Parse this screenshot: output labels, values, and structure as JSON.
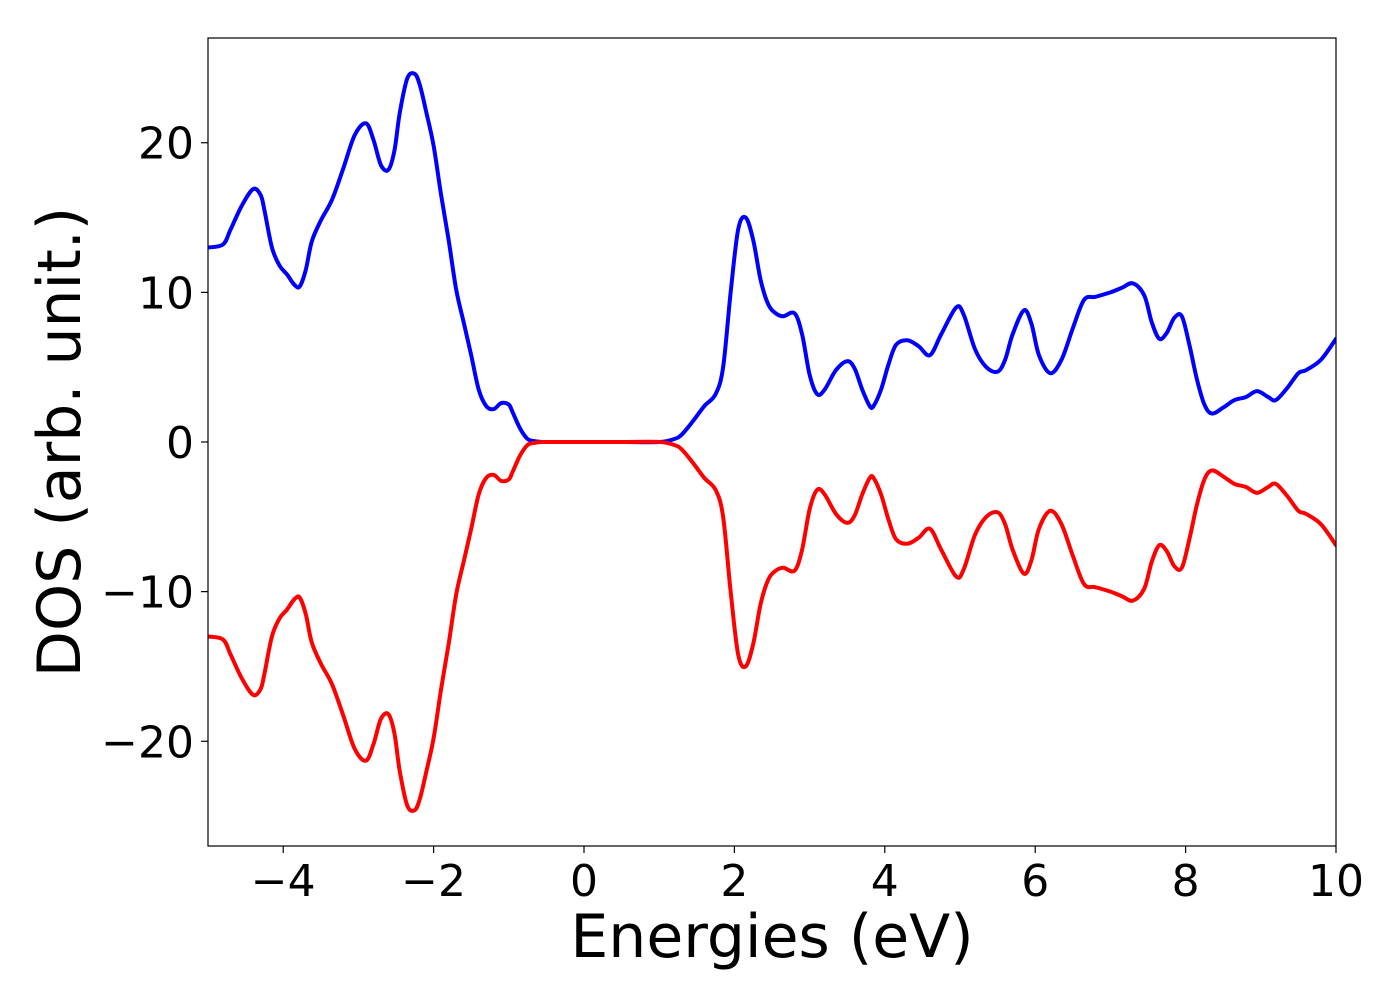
{
  "chart_data": {
    "type": "line",
    "xlabel": "Energies (eV)",
    "ylabel": "DOS (arb. unit.)",
    "xlim": [
      -5,
      10
    ],
    "ylim": [
      -27,
      27
    ],
    "x_ticks": [
      -4,
      -2,
      0,
      2,
      4,
      6,
      8,
      10
    ],
    "x_tick_labels": [
      "−4",
      "−2",
      "0",
      "2",
      "4",
      "6",
      "8",
      "10"
    ],
    "y_ticks": [
      -20,
      -10,
      0,
      10,
      20
    ],
    "y_tick_labels": [
      "−20",
      "−10",
      "0",
      "10",
      "20"
    ],
    "grid": false,
    "legend": "none",
    "series": [
      {
        "color": "#0000ff",
        "x": [
          -5.0,
          -4.8,
          -4.7,
          -4.55,
          -4.4,
          -4.3,
          -4.25,
          -4.15,
          -4.05,
          -3.95,
          -3.85,
          -3.78,
          -3.7,
          -3.62,
          -3.5,
          -3.35,
          -3.2,
          -3.05,
          -2.9,
          -2.8,
          -2.7,
          -2.6,
          -2.52,
          -2.45,
          -2.35,
          -2.25,
          -2.18,
          -2.1,
          -2.0,
          -1.9,
          -1.8,
          -1.7,
          -1.6,
          -1.5,
          -1.4,
          -1.3,
          -1.2,
          -1.1,
          -1.0,
          -0.95,
          -0.85,
          -0.75,
          -0.65,
          -0.55,
          -0.45,
          0.0,
          0.5,
          1.0,
          1.2,
          1.3,
          1.45,
          1.6,
          1.75,
          1.85,
          1.95,
          2.05,
          2.15,
          2.25,
          2.35,
          2.45,
          2.55,
          2.65,
          2.8,
          2.9,
          3.0,
          3.1,
          3.2,
          3.35,
          3.5,
          3.6,
          3.7,
          3.8,
          3.85,
          3.95,
          4.05,
          4.15,
          4.3,
          4.45,
          4.6,
          4.75,
          4.95,
          5.05,
          5.2,
          5.35,
          5.5,
          5.6,
          5.7,
          5.85,
          5.95,
          6.05,
          6.2,
          6.35,
          6.5,
          6.65,
          6.8,
          7.0,
          7.15,
          7.3,
          7.45,
          7.55,
          7.65,
          7.75,
          7.85,
          7.95,
          8.05,
          8.15,
          8.25,
          8.35,
          8.5,
          8.65,
          8.8,
          8.95,
          9.1,
          9.2,
          9.35,
          9.5,
          9.6,
          9.8,
          10.0
        ],
        "y": [
          13.0,
          13.2,
          14.2,
          15.8,
          16.9,
          16.5,
          15.5,
          13.0,
          11.8,
          11.2,
          10.5,
          10.4,
          11.5,
          13.4,
          14.8,
          16.2,
          18.3,
          20.5,
          21.3,
          20.2,
          18.5,
          18.2,
          19.5,
          22.0,
          24.3,
          24.6,
          23.8,
          22.1,
          19.8,
          16.5,
          13.5,
          10.2,
          8.0,
          5.8,
          3.5,
          2.4,
          2.2,
          2.6,
          2.5,
          2.0,
          0.9,
          0.2,
          0.05,
          0.0,
          0.0,
          0.0,
          0.0,
          0.0,
          0.2,
          0.5,
          1.4,
          2.4,
          3.2,
          5.0,
          10.0,
          14.2,
          15.0,
          13.5,
          10.8,
          9.2,
          8.6,
          8.4,
          8.6,
          7.2,
          4.5,
          3.2,
          3.5,
          4.8,
          5.4,
          4.9,
          3.5,
          2.4,
          2.4,
          3.5,
          5.2,
          6.5,
          6.8,
          6.4,
          5.8,
          7.2,
          9.0,
          8.5,
          6.2,
          5.0,
          4.7,
          5.5,
          7.2,
          8.8,
          7.9,
          5.8,
          4.6,
          5.5,
          7.6,
          9.5,
          9.7,
          10.0,
          10.3,
          10.6,
          9.8,
          8.0,
          6.9,
          7.3,
          8.3,
          8.4,
          6.5,
          4.2,
          2.5,
          1.9,
          2.3,
          2.8,
          3.0,
          3.4,
          3.0,
          2.8,
          3.6,
          4.6,
          4.8,
          5.5,
          6.9
        ]
      },
      {
        "color": "#ff0000",
        "x": [
          -5.0,
          -4.8,
          -4.7,
          -4.55,
          -4.4,
          -4.3,
          -4.25,
          -4.15,
          -4.05,
          -3.95,
          -3.85,
          -3.78,
          -3.7,
          -3.62,
          -3.5,
          -3.35,
          -3.2,
          -3.05,
          -2.9,
          -2.8,
          -2.7,
          -2.6,
          -2.52,
          -2.45,
          -2.35,
          -2.25,
          -2.18,
          -2.1,
          -2.0,
          -1.9,
          -1.8,
          -1.7,
          -1.6,
          -1.5,
          -1.4,
          -1.3,
          -1.2,
          -1.1,
          -1.0,
          -0.95,
          -0.85,
          -0.75,
          -0.65,
          -0.55,
          -0.45,
          0.0,
          0.5,
          1.0,
          1.2,
          1.3,
          1.45,
          1.6,
          1.75,
          1.85,
          1.95,
          2.05,
          2.15,
          2.25,
          2.35,
          2.45,
          2.55,
          2.65,
          2.8,
          2.9,
          3.0,
          3.1,
          3.2,
          3.35,
          3.5,
          3.6,
          3.7,
          3.8,
          3.85,
          3.95,
          4.05,
          4.15,
          4.3,
          4.45,
          4.6,
          4.75,
          4.95,
          5.05,
          5.2,
          5.35,
          5.5,
          5.6,
          5.7,
          5.85,
          5.95,
          6.05,
          6.2,
          6.35,
          6.5,
          6.65,
          6.8,
          7.0,
          7.15,
          7.3,
          7.45,
          7.55,
          7.65,
          7.75,
          7.85,
          7.95,
          8.05,
          8.15,
          8.25,
          8.35,
          8.5,
          8.65,
          8.8,
          8.95,
          9.1,
          9.2,
          9.35,
          9.5,
          9.6,
          9.8,
          10.0
        ],
        "y": [
          -13.0,
          -13.2,
          -14.2,
          -15.8,
          -16.9,
          -16.5,
          -15.5,
          -13.0,
          -11.8,
          -11.2,
          -10.5,
          -10.4,
          -11.5,
          -13.4,
          -14.8,
          -16.2,
          -18.3,
          -20.5,
          -21.3,
          -20.2,
          -18.5,
          -18.2,
          -19.5,
          -22.0,
          -24.3,
          -24.6,
          -23.8,
          -22.1,
          -19.8,
          -16.5,
          -13.5,
          -10.2,
          -8.0,
          -5.8,
          -3.5,
          -2.4,
          -2.2,
          -2.6,
          -2.5,
          -2.0,
          -0.9,
          -0.2,
          -0.05,
          0.0,
          0.0,
          0.0,
          0.0,
          0.0,
          -0.2,
          -0.5,
          -1.4,
          -2.4,
          -3.2,
          -5.0,
          -10.0,
          -14.2,
          -15.0,
          -13.5,
          -10.8,
          -9.2,
          -8.6,
          -8.4,
          -8.6,
          -7.2,
          -4.5,
          -3.2,
          -3.5,
          -4.8,
          -5.4,
          -4.9,
          -3.5,
          -2.4,
          -2.4,
          -3.5,
          -5.2,
          -6.5,
          -6.8,
          -6.4,
          -5.8,
          -7.2,
          -9.0,
          -8.5,
          -6.2,
          -5.0,
          -4.7,
          -5.5,
          -7.2,
          -8.8,
          -7.9,
          -5.8,
          -4.6,
          -5.5,
          -7.6,
          -9.5,
          -9.7,
          -10.0,
          -10.3,
          -10.6,
          -9.8,
          -8.0,
          -6.9,
          -7.3,
          -8.3,
          -8.4,
          -6.5,
          -4.2,
          -2.5,
          -1.9,
          -2.3,
          -2.8,
          -3.0,
          -3.4,
          -3.0,
          -2.8,
          -3.6,
          -4.6,
          -4.8,
          -5.5,
          -6.9
        ]
      }
    ]
  }
}
